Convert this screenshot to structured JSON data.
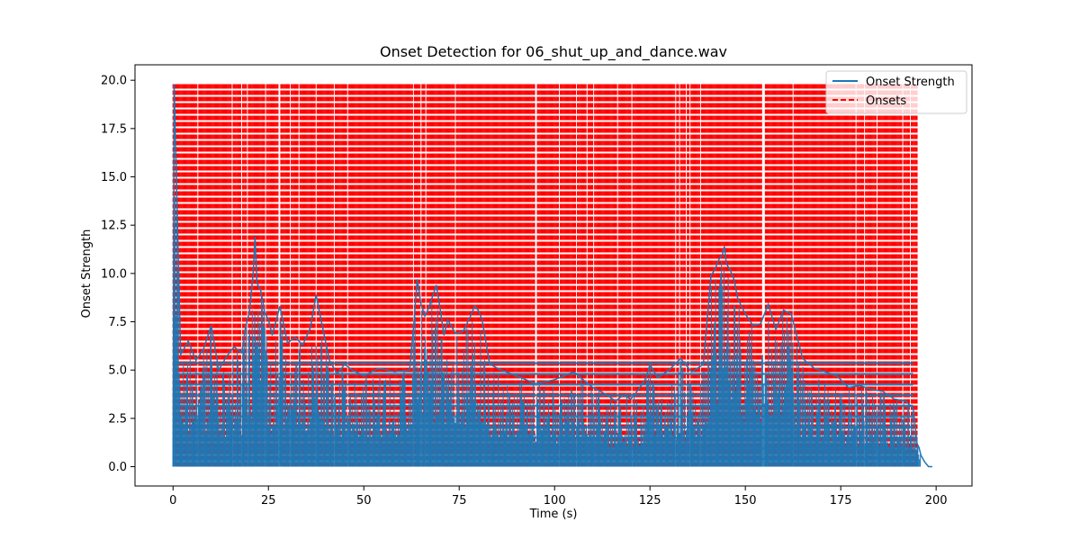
{
  "chart_data": {
    "type": "line",
    "title": "Onset Detection for 06_shut_up_and_dance.wav",
    "xlabel": "Time (s)",
    "ylabel": "Onset Strength",
    "xlim": [
      -9.97,
      209.4
    ],
    "ylim": [
      -1.0,
      20.8
    ],
    "x_ticks": [
      0,
      25,
      50,
      75,
      100,
      125,
      150,
      175,
      200
    ],
    "x_tick_labels": [
      "0",
      "25",
      "50",
      "75",
      "100",
      "125",
      "150",
      "175",
      "200"
    ],
    "y_ticks": [
      0.0,
      2.5,
      5.0,
      7.5,
      10.0,
      12.5,
      15.0,
      17.5,
      20.0
    ],
    "y_tick_labels": [
      "0.0",
      "2.5",
      "5.0",
      "7.5",
      "10.0",
      "12.5",
      "15.0",
      "17.5",
      "20.0"
    ],
    "grid": false,
    "legend_position": "top-right",
    "series": [
      {
        "name": "Onset Strength",
        "kind": "line",
        "color": "#1f77b4",
        "x": [
          0,
          0.3,
          2,
          4,
          6,
          8,
          10,
          12,
          14,
          16,
          18,
          19,
          20,
          21,
          21.5,
          22,
          23,
          24,
          25,
          26,
          28,
          30,
          32,
          34,
          36,
          37.5,
          39,
          41,
          43,
          45,
          47,
          50,
          54,
          58,
          62,
          63,
          64,
          65,
          66,
          67,
          68,
          69,
          70,
          71,
          72,
          74,
          76,
          77,
          78,
          79,
          80,
          81,
          83,
          86,
          90,
          95,
          100,
          105,
          110,
          113,
          116,
          118,
          120,
          122,
          124,
          125,
          127,
          130,
          133,
          136,
          139,
          141,
          142,
          143,
          144,
          144.5,
          145,
          146,
          147,
          148,
          150,
          152,
          154,
          156,
          158,
          160,
          162,
          165,
          168,
          171,
          174,
          177,
          180,
          183,
          186,
          189,
          192,
          194,
          195,
          195.5,
          196,
          197,
          198,
          199
        ],
        "y": [
          0.0,
          19.8,
          5.8,
          6.5,
          5.5,
          6.1,
          7.3,
          5.0,
          5.7,
          6.2,
          5.9,
          7.2,
          8.0,
          10.0,
          11.9,
          9.5,
          9.1,
          8.0,
          7.6,
          6.8,
          8.3,
          6.4,
          6.7,
          6.3,
          7.2,
          8.9,
          7.4,
          5.5,
          4.8,
          5.3,
          5.0,
          4.7,
          5.1,
          4.9,
          5.0,
          7.1,
          9.7,
          8.4,
          7.8,
          8.2,
          8.8,
          9.4,
          8.2,
          6.8,
          7.6,
          6.9,
          7.0,
          7.4,
          7.8,
          8.3,
          8.1,
          7.6,
          5.3,
          5.0,
          4.7,
          4.3,
          4.5,
          4.9,
          4.1,
          3.8,
          3.4,
          3.7,
          3.5,
          4.0,
          4.6,
          5.3,
          4.6,
          5.0,
          5.6,
          4.9,
          5.3,
          9.9,
          10.2,
          10.7,
          11.0,
          11.4,
          10.5,
          10.2,
          9.7,
          8.7,
          7.9,
          7.3,
          7.4,
          8.4,
          7.1,
          8.1,
          7.9,
          5.6,
          5.1,
          4.9,
          4.7,
          4.1,
          4.2,
          4.0,
          3.9,
          3.5,
          3.4,
          3.0,
          1.2,
          1.0,
          0.6,
          0.25,
          0.0,
          0.0
        ]
      },
      {
        "name": "Onsets",
        "kind": "vlines",
        "color": "#ff0000",
        "style": "dashed",
        "ymin": 0.0,
        "ymax": 19.8,
        "x_range": [
          0,
          195
        ],
        "approx_spacing": 0.25
      }
    ]
  }
}
